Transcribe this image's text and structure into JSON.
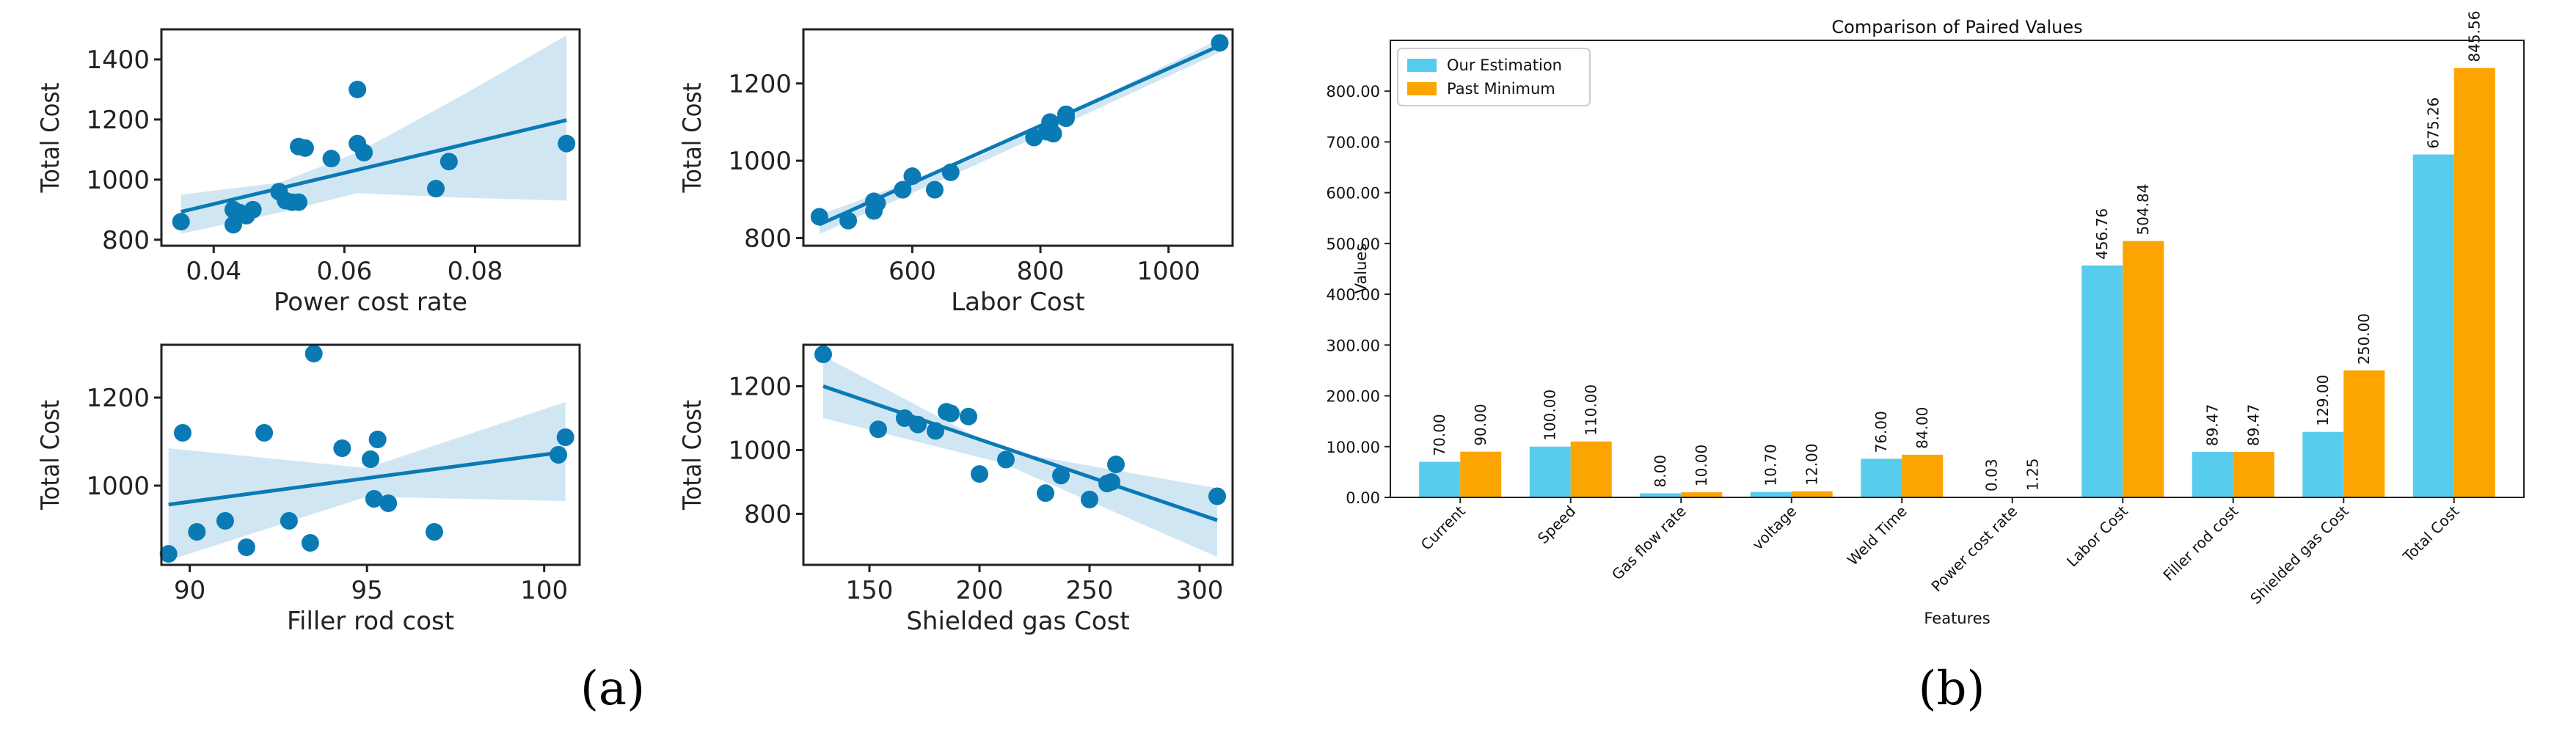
{
  "panel_labels": {
    "a": "(a)",
    "b": "(b)"
  },
  "colors": {
    "scatter": "#0a7ab5",
    "ci_band": "#c9e2f1",
    "series_estimation": "#58ccec",
    "series_past": "#fca500"
  },
  "chart_data": [
    {
      "type": "scatter",
      "title": "",
      "xlabel": "Power cost rate",
      "ylabel": "Total Cost",
      "xlim": [
        0.032,
        0.096
      ],
      "ylim": [
        780,
        1500
      ],
      "xticks": [
        0.04,
        0.06,
        0.08
      ],
      "xtick_labels": [
        "0.04",
        "0.06",
        "0.08"
      ],
      "yticks": [
        800,
        1000,
        1200,
        1400
      ],
      "ytick_labels": [
        "800",
        "1000",
        "1200",
        "1400"
      ],
      "points": [
        [
          0.035,
          860
        ],
        [
          0.043,
          850
        ],
        [
          0.043,
          900
        ],
        [
          0.044,
          890
        ],
        [
          0.045,
          880
        ],
        [
          0.046,
          900
        ],
        [
          0.05,
          960
        ],
        [
          0.051,
          930
        ],
        [
          0.052,
          925
        ],
        [
          0.053,
          925
        ],
        [
          0.053,
          1110
        ],
        [
          0.054,
          1105
        ],
        [
          0.058,
          1070
        ],
        [
          0.062,
          1120
        ],
        [
          0.062,
          1300
        ],
        [
          0.063,
          1090
        ],
        [
          0.074,
          970
        ],
        [
          0.076,
          1060
        ],
        [
          0.094,
          1120
        ]
      ],
      "fit": [
        [
          0.035,
          893
        ],
        [
          0.094,
          1198
        ]
      ],
      "ci_upper": [
        [
          0.035,
          950
        ],
        [
          0.05,
          990
        ],
        [
          0.062,
          1090
        ],
        [
          0.078,
          1280
        ],
        [
          0.094,
          1480
        ]
      ],
      "ci_lower": [
        [
          0.035,
          820
        ],
        [
          0.05,
          890
        ],
        [
          0.062,
          955
        ],
        [
          0.078,
          940
        ],
        [
          0.094,
          930
        ]
      ]
    },
    {
      "type": "scatter",
      "title": "",
      "xlabel": "Labor Cost",
      "ylabel": "Total Cost",
      "xlim": [
        430,
        1100
      ],
      "ylim": [
        780,
        1340
      ],
      "xticks": [
        600,
        800,
        1000
      ],
      "xtick_labels": [
        "600",
        "800",
        "1000"
      ],
      "yticks": [
        800,
        1000,
        1200
      ],
      "ytick_labels": [
        "800",
        "1000",
        "1200"
      ],
      "points": [
        [
          455,
          855
        ],
        [
          500,
          845
        ],
        [
          540,
          870
        ],
        [
          540,
          895
        ],
        [
          545,
          890
        ],
        [
          585,
          925
        ],
        [
          600,
          960
        ],
        [
          635,
          925
        ],
        [
          660,
          970
        ],
        [
          790,
          1060
        ],
        [
          810,
          1075
        ],
        [
          815,
          1100
        ],
        [
          820,
          1070
        ],
        [
          840,
          1110
        ],
        [
          840,
          1120
        ],
        [
          1080,
          1305
        ]
      ],
      "fit": [
        [
          455,
          835
        ],
        [
          1080,
          1298
        ]
      ],
      "ci_upper": [
        [
          455,
          860
        ],
        [
          700,
          1008
        ],
        [
          1080,
          1315
        ]
      ],
      "ci_lower": [
        [
          455,
          810
        ],
        [
          700,
          990
        ],
        [
          1080,
          1280
        ]
      ]
    },
    {
      "type": "scatter",
      "title": "",
      "xlabel": "Filler rod  cost",
      "ylabel": "Total Cost",
      "xlim": [
        89.2,
        101
      ],
      "ylim": [
        820,
        1320
      ],
      "xticks": [
        90,
        95,
        100
      ],
      "xtick_labels": [
        "90",
        "95",
        "100"
      ],
      "yticks": [
        1000,
        1200
      ],
      "ytick_labels": [
        "1000",
        "1200"
      ],
      "points": [
        [
          89.4,
          845
        ],
        [
          89.8,
          1120
        ],
        [
          90.2,
          895
        ],
        [
          91.0,
          920
        ],
        [
          91.6,
          860
        ],
        [
          92.1,
          1120
        ],
        [
          92.8,
          920
        ],
        [
          93.4,
          870
        ],
        [
          93.5,
          1300
        ],
        [
          94.3,
          1085
        ],
        [
          95.1,
          1060
        ],
        [
          95.3,
          1105
        ],
        [
          95.2,
          970
        ],
        [
          95.6,
          960
        ],
        [
          96.9,
          895
        ],
        [
          100.4,
          1070
        ],
        [
          100.6,
          1110
        ]
      ],
      "fit": [
        [
          89.4,
          957
        ],
        [
          100.6,
          1077
        ]
      ],
      "ci_upper": [
        [
          89.4,
          1085
        ],
        [
          95,
          1040
        ],
        [
          100.6,
          1190
        ]
      ],
      "ci_lower": [
        [
          89.4,
          830
        ],
        [
          95,
          975
        ],
        [
          100.6,
          965
        ]
      ]
    },
    {
      "type": "scatter",
      "title": "",
      "xlabel": "Shielded gas Cost",
      "ylabel": "Total Cost",
      "xlim": [
        120,
        315
      ],
      "ylim": [
        640,
        1330
      ],
      "xticks": [
        150,
        200,
        250,
        300
      ],
      "xtick_labels": [
        "150",
        "200",
        "250",
        "300"
      ],
      "yticks": [
        800,
        1000,
        1200
      ],
      "ytick_labels": [
        "800",
        "1000",
        "1200"
      ],
      "points": [
        [
          129,
          1300
        ],
        [
          154,
          1065
        ],
        [
          166,
          1100
        ],
        [
          172,
          1080
        ],
        [
          180,
          1060
        ],
        [
          185,
          1120
        ],
        [
          187,
          1115
        ],
        [
          195,
          1105
        ],
        [
          200,
          925
        ],
        [
          212,
          970
        ],
        [
          230,
          865
        ],
        [
          237,
          920
        ],
        [
          250,
          845
        ],
        [
          258,
          895
        ],
        [
          262,
          955
        ],
        [
          260,
          900
        ],
        [
          308,
          855
        ]
      ],
      "fit": [
        [
          129,
          1200
        ],
        [
          308,
          780
        ]
      ],
      "ci_upper": [
        [
          129,
          1295
        ],
        [
          210,
          1000
        ],
        [
          308,
          880
        ]
      ],
      "ci_lower": [
        [
          129,
          1100
        ],
        [
          210,
          960
        ],
        [
          308,
          665
        ]
      ]
    },
    {
      "type": "bar",
      "title": "Comparison of Paired Values",
      "xlabel": "Features",
      "ylabel": "Values",
      "ylim": [
        0,
        900
      ],
      "yticks": [
        0,
        100,
        200,
        300,
        400,
        500,
        600,
        700,
        800
      ],
      "ytick_labels": [
        "0.00",
        "100.00",
        "200.00",
        "300.00",
        "400.00",
        "500.00",
        "600.00",
        "700.00",
        "800.00"
      ],
      "legend_position": "top-left",
      "categories": [
        "Current",
        "Speed",
        "Gas flow rate",
        "voltage",
        "Weld Time",
        "Power cost rate",
        "Labor Cost",
        "Filler rod  cost",
        "Shielded gas Cost",
        "Total Cost"
      ],
      "series": [
        {
          "name": "Our Estimation",
          "values": [
            70.0,
            100.0,
            8.0,
            10.7,
            76.0,
            0.03,
            456.76,
            89.47,
            129.0,
            675.26
          ],
          "labels": [
            "70.00",
            "100.00",
            "8.00",
            "10.70",
            "76.00",
            "0.03",
            "456.76",
            "89.47",
            "129.00",
            "675.26"
          ]
        },
        {
          "name": "Past Minimum",
          "values": [
            90.0,
            110.0,
            10.0,
            12.0,
            84.0,
            1.25,
            504.84,
            89.47,
            250.0,
            845.56
          ],
          "labels": [
            "90.00",
            "110.00",
            "10.00",
            "12.00",
            "84.00",
            "1.25",
            "504.84",
            "89.47",
            "250.00",
            "845.56"
          ]
        }
      ]
    }
  ]
}
